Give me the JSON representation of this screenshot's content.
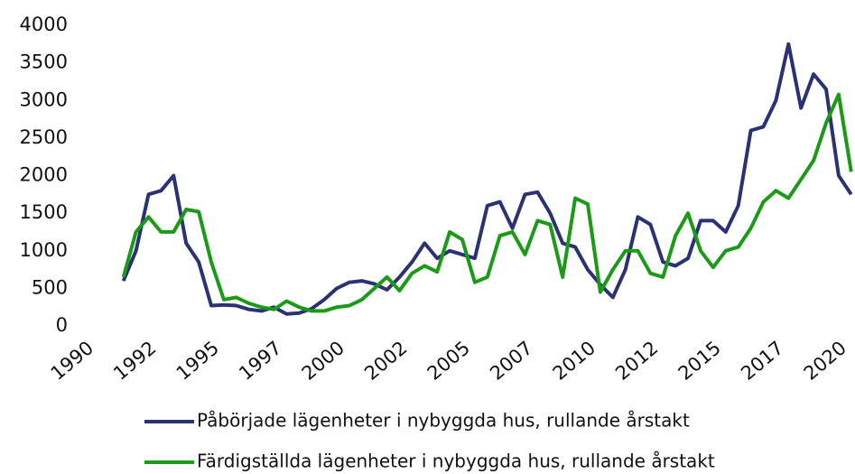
{
  "chart_data": {
    "type": "line",
    "x": [
      1991.5,
      1992,
      1992.5,
      1993,
      1993.5,
      1994,
      1994.5,
      1995,
      1995.5,
      1996,
      1996.5,
      1997,
      1997.5,
      1998,
      1998.5,
      1999,
      1999.5,
      2000,
      2000.5,
      2001,
      2001.5,
      2002,
      2002.5,
      2003,
      2003.5,
      2004,
      2004.5,
      2005,
      2005.5,
      2006,
      2006.5,
      2007,
      2007.5,
      2008,
      2008.5,
      2009,
      2009.5,
      2010,
      2010.5,
      2011,
      2011.5,
      2012,
      2012.5,
      2013,
      2013.5,
      2014,
      2014.5,
      2015,
      2015.5,
      2016,
      2016.5,
      2017,
      2017.5,
      2018,
      2018.5,
      2019,
      2019.5,
      2020,
      2020.5
    ],
    "series": [
      {
        "name": "Påbörjade lägenheter i nybyggda hus, rullande årstakt",
        "color": "#2b3274",
        "values": [
          600,
          1000,
          1750,
          1800,
          2000,
          1100,
          850,
          270,
          280,
          270,
          220,
          200,
          250,
          160,
          170,
          230,
          350,
          500,
          580,
          600,
          560,
          480,
          650,
          850,
          1100,
          900,
          1000,
          950,
          900,
          1600,
          1650,
          1300,
          1750,
          1780,
          1500,
          1100,
          1050,
          750,
          550,
          380,
          750,
          1450,
          1350,
          850,
          800,
          900,
          1400,
          1400,
          1250,
          1600,
          2600,
          2650,
          3000,
          3750,
          2900,
          3350,
          3150,
          2000,
          1750
        ]
      },
      {
        "name": "Färdigställda lägenheter i nybyggda hus, rullande årstakt",
        "color": "#1a9a17",
        "values": [
          650,
          1250,
          1450,
          1250,
          1250,
          1550,
          1520,
          850,
          350,
          380,
          300,
          250,
          220,
          330,
          250,
          200,
          200,
          250,
          270,
          350,
          500,
          650,
          470,
          700,
          800,
          720,
          1250,
          1150,
          580,
          650,
          1200,
          1250,
          950,
          1400,
          1350,
          650,
          1700,
          1620,
          450,
          750,
          1000,
          1000,
          700,
          650,
          1200,
          1500,
          1000,
          780,
          1000,
          1050,
          1300,
          1650,
          1800,
          1700,
          1950,
          2200,
          2700,
          3080,
          2050
        ]
      }
    ],
    "xlim": [
      1990,
      2020.65
    ],
    "xticks": [
      1990,
      {
        "value": 1992.5,
        "label": "1992"
      },
      1995,
      {
        "value": 1997.5,
        "label": "1997"
      },
      2000,
      {
        "value": 2002.5,
        "label": "2002"
      },
      2005,
      {
        "value": 2007.5,
        "label": "2007"
      },
      2010,
      {
        "value": 2012.5,
        "label": "2012"
      },
      2015,
      {
        "value": 2017.5,
        "label": "2017"
      },
      2020
    ],
    "ylim": [
      0,
      4000
    ],
    "yticks": [
      0,
      500,
      1000,
      1500,
      2000,
      2500,
      3000,
      3500,
      4000
    ],
    "grid": false
  }
}
